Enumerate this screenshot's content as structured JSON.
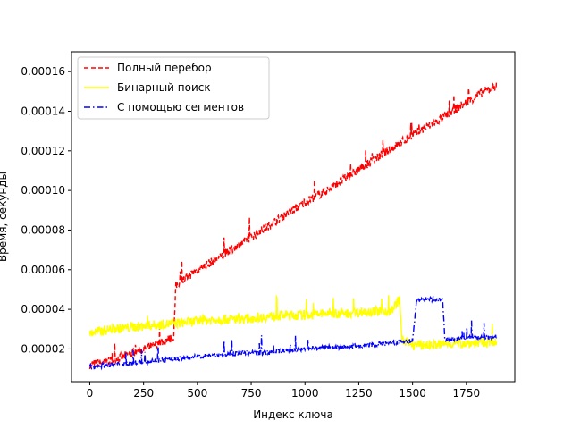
{
  "chart_data": {
    "type": "line",
    "title": "",
    "xlabel": "Индекс ключа",
    "ylabel": "Время, секунды",
    "xlim": [
      -85,
      1975
    ],
    "ylim": [
      3.5e-06,
      0.00017
    ],
    "xticks": [
      0,
      250,
      500,
      750,
      1000,
      1250,
      1500,
      1750
    ],
    "yticks": [
      2e-05,
      4e-05,
      6e-05,
      8e-05,
      0.0001,
      0.00012,
      0.00014,
      0.00016
    ],
    "ytick_labels": [
      "0.00002",
      "0.00004",
      "0.00006",
      "0.00008",
      "0.00010",
      "0.00012",
      "0.00014",
      "0.00016"
    ],
    "grid": false,
    "legend_position": "top-left",
    "series": [
      {
        "name": "Полный перебор",
        "color": "#ff0000",
        "linestyle": "dashed",
        "x": [
          0,
          100,
          200,
          300,
          390,
          400,
          500,
          600,
          700,
          800,
          900,
          1000,
          1100,
          1200,
          1300,
          1400,
          1500,
          1600,
          1700,
          1800,
          1890
        ],
        "y": [
          1.2e-05,
          1.4e-05,
          1.8e-05,
          2.2e-05,
          2.6e-05,
          5.2e-05,
          6e-05,
          6.6e-05,
          7.3e-05,
          8e-05,
          8.7e-05,
          9.4e-05,
          0.0001,
          0.000107,
          0.000114,
          0.000121,
          0.000128,
          0.000134,
          0.000141,
          0.000148,
          0.000153
        ]
      },
      {
        "name": "Бинарный поиск",
        "color": "#ffff00",
        "linestyle": "solid",
        "x": [
          0,
          100,
          200,
          300,
          400,
          500,
          600,
          700,
          800,
          900,
          1000,
          1100,
          1200,
          1300,
          1400,
          1440,
          1450,
          1500,
          1600,
          1700,
          1800,
          1890
        ],
        "y": [
          2.8e-05,
          3e-05,
          3.1e-05,
          3.2e-05,
          3.3e-05,
          3.4e-05,
          3.5e-05,
          3.5e-05,
          3.6e-05,
          3.7e-05,
          3.7e-05,
          3.8e-05,
          3.8e-05,
          3.9e-05,
          3.9e-05,
          4.5e-05,
          2.5e-05,
          2.2e-05,
          2.2e-05,
          2.3e-05,
          2.3e-05,
          2.3e-05
        ]
      },
      {
        "name": "С помощью сегментов",
        "color": "#0000ff",
        "linestyle": "dashdot",
        "x": [
          0,
          100,
          200,
          300,
          400,
          500,
          600,
          700,
          800,
          900,
          1000,
          1100,
          1200,
          1300,
          1400,
          1500,
          1520,
          1640,
          1650,
          1700,
          1800,
          1890
        ],
        "y": [
          1.1e-05,
          1.2e-05,
          1.3e-05,
          1.4e-05,
          1.5e-05,
          1.6e-05,
          1.7e-05,
          1.8e-05,
          1.8e-05,
          1.9e-05,
          2e-05,
          2.1e-05,
          2.1e-05,
          2.2e-05,
          2.3e-05,
          2.4e-05,
          4.5e-05,
          4.5e-05,
          2.5e-05,
          2.5e-05,
          2.6e-05,
          2.6e-05
        ]
      }
    ]
  }
}
